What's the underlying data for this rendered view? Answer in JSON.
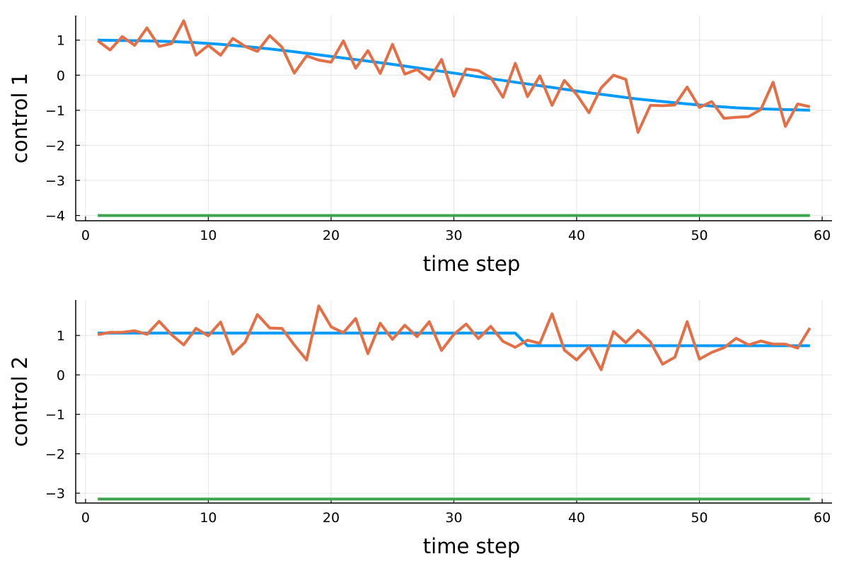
{
  "chart_data": [
    {
      "type": "line",
      "xlabel": "time step",
      "ylabel": "control 1",
      "xlim": [
        -0.8,
        60.8
      ],
      "ylim": [
        -4.15,
        1.7
      ],
      "xticks": [
        0,
        10,
        20,
        30,
        40,
        50,
        60
      ],
      "yticks": [
        1,
        0,
        -1,
        -2,
        -3,
        -4
      ],
      "ytick_labels": [
        "1",
        "0",
        "−1",
        "−2",
        "−3",
        "−4"
      ],
      "grid": true,
      "legend": "none",
      "series": [
        {
          "color": "#009AFA",
          "x": [
            1,
            3,
            5,
            7,
            9,
            11,
            13,
            15,
            17,
            19,
            21,
            23,
            25,
            27,
            29,
            31,
            33,
            35,
            37,
            39,
            41,
            43,
            45,
            47,
            49,
            51,
            53,
            55,
            57,
            59
          ],
          "y": [
            1.0,
            0.99,
            0.98,
            0.96,
            0.93,
            0.88,
            0.82,
            0.75,
            0.67,
            0.58,
            0.49,
            0.4,
            0.31,
            0.21,
            0.11,
            0.01,
            -0.1,
            -0.2,
            -0.3,
            -0.4,
            -0.5,
            -0.59,
            -0.68,
            -0.75,
            -0.82,
            -0.88,
            -0.93,
            -0.96,
            -0.98,
            -1.0
          ]
        },
        {
          "color": "#E36F47",
          "x": [
            1,
            2,
            3,
            4,
            5,
            6,
            7,
            8,
            9,
            10,
            11,
            12,
            13,
            14,
            15,
            16,
            17,
            18,
            19,
            20,
            21,
            22,
            23,
            24,
            25,
            26,
            27,
            28,
            29,
            30,
            31,
            32,
            33,
            34,
            35,
            36,
            37,
            38,
            39,
            40,
            41,
            42,
            43,
            44,
            45,
            46,
            47,
            48,
            49,
            50,
            51,
            52,
            53,
            54,
            55,
            56,
            57,
            58,
            59
          ],
          "y": [
            0.98,
            0.72,
            1.1,
            0.85,
            1.35,
            0.82,
            0.9,
            1.55,
            0.57,
            0.85,
            0.57,
            1.05,
            0.82,
            0.68,
            1.13,
            0.8,
            0.06,
            0.55,
            0.43,
            0.37,
            0.98,
            0.2,
            0.7,
            0.05,
            0.88,
            0.03,
            0.16,
            -0.12,
            0.45,
            -0.6,
            0.18,
            0.13,
            -0.07,
            -0.63,
            0.34,
            -0.61,
            -0.02,
            -0.86,
            -0.15,
            -0.55,
            -1.07,
            -0.36,
            0.0,
            -0.12,
            -1.63,
            -0.86,
            -0.87,
            -0.85,
            -0.34,
            -0.92,
            -0.75,
            -1.23,
            -1.2,
            -1.18,
            -0.98,
            -0.2,
            -1.46,
            -0.82,
            -0.9
          ]
        },
        {
          "color": "#3EA44E",
          "x": [
            1,
            59
          ],
          "y": [
            -4.0,
            -4.0
          ]
        }
      ]
    },
    {
      "type": "line",
      "xlabel": "time step",
      "ylabel": "control 2",
      "xlim": [
        -0.8,
        60.8
      ],
      "ylim": [
        -3.25,
        1.9
      ],
      "xticks": [
        0,
        10,
        20,
        30,
        40,
        50,
        60
      ],
      "yticks": [
        1,
        0,
        -1,
        -2,
        -3
      ],
      "ytick_labels": [
        "1",
        "0",
        "−1",
        "−2",
        "−3"
      ],
      "grid": true,
      "legend": "none",
      "series": [
        {
          "color": "#009AFA",
          "x": [
            1,
            35,
            36,
            59
          ],
          "y": [
            1.06,
            1.06,
            0.74,
            0.74
          ]
        },
        {
          "color": "#E36F47",
          "x": [
            1,
            2,
            3,
            4,
            5,
            6,
            7,
            8,
            9,
            10,
            11,
            12,
            13,
            14,
            15,
            16,
            17,
            18,
            19,
            20,
            21,
            22,
            23,
            24,
            25,
            26,
            27,
            28,
            29,
            30,
            31,
            32,
            33,
            34,
            35,
            36,
            37,
            38,
            39,
            40,
            41,
            42,
            43,
            44,
            45,
            46,
            47,
            48,
            49,
            50,
            51,
            52,
            53,
            54,
            55,
            56,
            57,
            58,
            59
          ],
          "y": [
            1.02,
            1.08,
            1.08,
            1.12,
            1.03,
            1.36,
            1.02,
            0.76,
            1.18,
            0.99,
            1.34,
            0.53,
            0.83,
            1.53,
            1.19,
            1.18,
            0.76,
            0.38,
            1.75,
            1.22,
            1.07,
            1.43,
            0.54,
            1.31,
            0.9,
            1.26,
            0.97,
            1.35,
            0.62,
            1.03,
            1.29,
            0.92,
            1.23,
            0.85,
            0.7,
            0.88,
            0.8,
            1.55,
            0.63,
            0.38,
            0.71,
            0.13,
            1.1,
            0.82,
            1.13,
            0.84,
            0.27,
            0.45,
            1.35,
            0.4,
            0.57,
            0.69,
            0.93,
            0.76,
            0.86,
            0.78,
            0.78,
            0.68,
            1.19
          ]
        },
        {
          "color": "#3EA44E",
          "x": [
            1,
            59
          ],
          "y": [
            -3.15,
            -3.15
          ]
        }
      ]
    }
  ]
}
